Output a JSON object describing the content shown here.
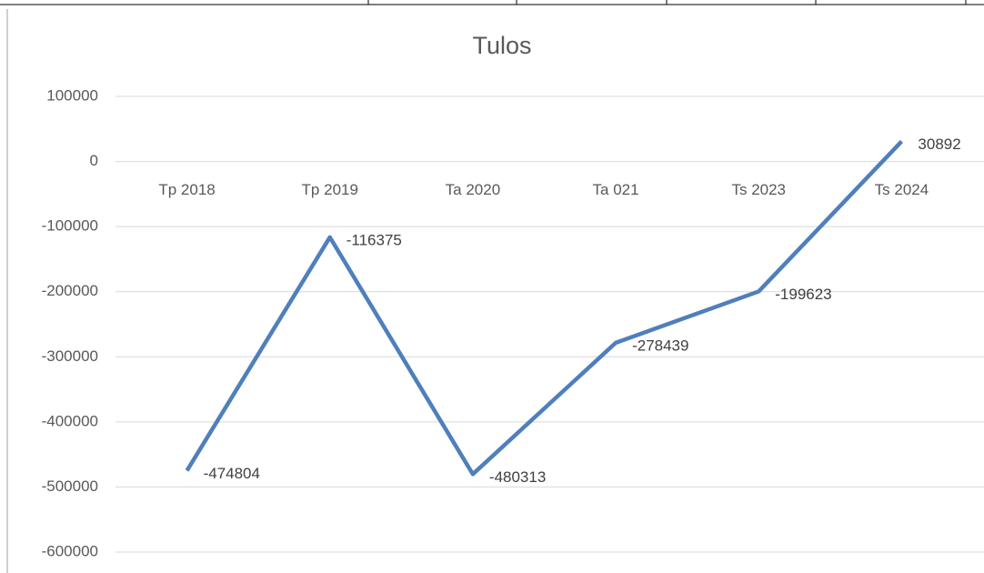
{
  "chart_data": {
    "type": "line",
    "title": "Tulos",
    "categories": [
      "Tp 2018",
      "Tp 2019",
      "Ta 2020",
      "Ta 021",
      "Ts 2023",
      "Ts 2024"
    ],
    "series": [
      {
        "name": "Tulos",
        "color": "#4f7fbc",
        "values": [
          -474804,
          -116375,
          -480313,
          -278439,
          -199623,
          30892
        ]
      }
    ],
    "ylim": [
      -600000,
      100000
    ],
    "yticks": [
      -600000,
      -500000,
      -400000,
      -300000,
      -200000,
      -100000,
      0,
      100000
    ],
    "grid": true,
    "data_labels": true
  }
}
